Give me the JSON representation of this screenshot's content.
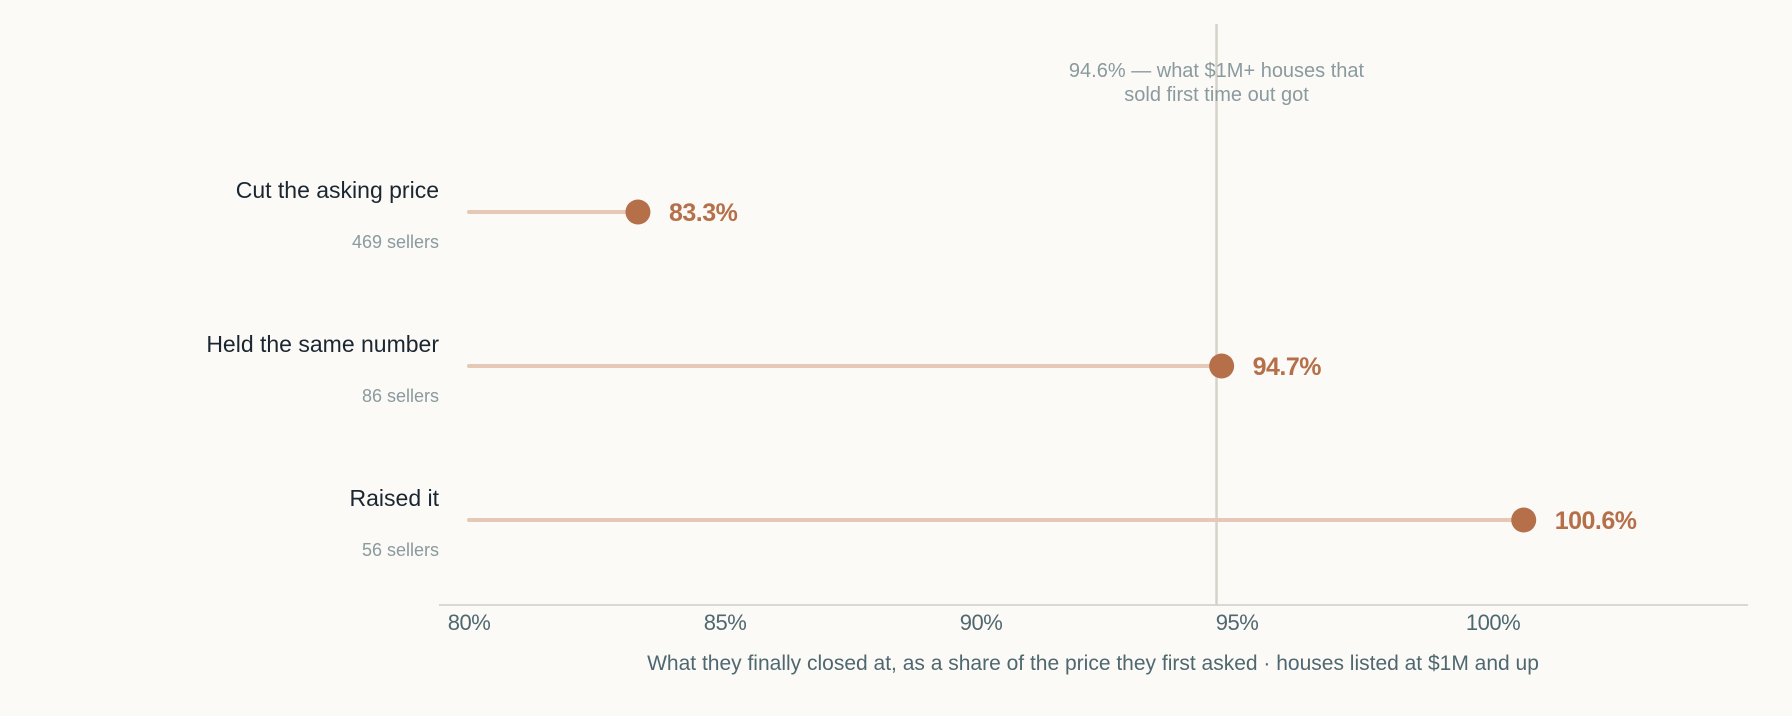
{
  "chart_data": {
    "type": "dot",
    "title": "",
    "xlabel": "What they finally closed at, as a share of the price they first asked · houses listed at $1M and up",
    "ylabel": "",
    "xlim": [
      80,
      105
    ],
    "xticks": [
      80,
      85,
      90,
      95,
      100
    ],
    "tick_labels": [
      "80%",
      "85%",
      "90%",
      "95%",
      "100%"
    ],
    "baseline": 80,
    "categories": [
      {
        "label": "Cut the asking price",
        "count_label": "469 sellers",
        "value": 83.3,
        "value_label": "83.3%"
      },
      {
        "label": "Held the same number",
        "count_label": "86 sellers",
        "value": 94.7,
        "value_label": "94.7%"
      },
      {
        "label": "Raised it",
        "count_label": "56 sellers",
        "value": 100.6,
        "value_label": "100.6%"
      }
    ],
    "reference_line": {
      "value": 94.6,
      "note_lines": [
        "94.6% — what $1M+ houses that",
        "sold first time out got"
      ]
    },
    "colors": {
      "dot": "#b5704a",
      "stem": "#e6c8b6",
      "reference": "#d6d2ca",
      "axis": "#cfccc6",
      "background": "#fbfaf7"
    },
    "grid": false,
    "legend": "none"
  }
}
